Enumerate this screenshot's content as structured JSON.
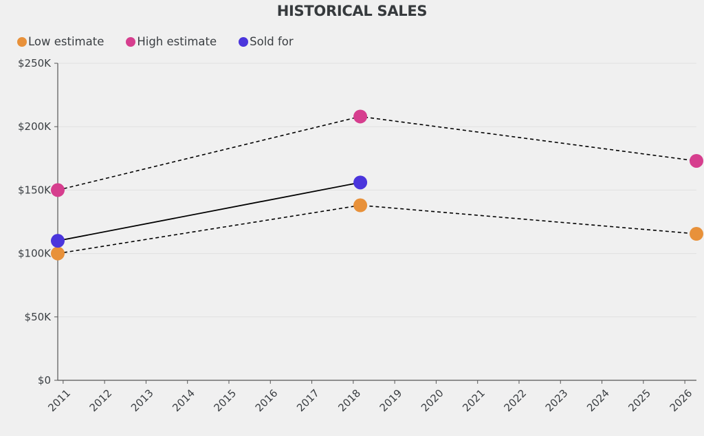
{
  "chart_data": {
    "type": "line",
    "title": "HISTORICAL SALES",
    "xlabel": "",
    "ylabel": "",
    "x_ticks": [
      "2011",
      "2012",
      "2013",
      "2014",
      "2015",
      "2016",
      "2017",
      "2018",
      "2019",
      "2020",
      "2021",
      "2022",
      "2023",
      "2024",
      "2025",
      "2026"
    ],
    "xlim": [
      2010.87,
      2026.28
    ],
    "y_ticks": [
      "$0",
      "$50K",
      "$100K",
      "$150K",
      "$200K",
      "$250K"
    ],
    "y_tick_values": [
      0,
      50000,
      100000,
      150000,
      200000,
      250000
    ],
    "ylim": [
      0,
      250000
    ],
    "grid": "horizontal",
    "legend_position": "top-left",
    "series": [
      {
        "name": "Low estimate",
        "color": "#e8913a",
        "line": "dashed",
        "x": [
          2010.87,
          2018.17,
          2026.28
        ],
        "values": [
          100000,
          138000,
          115500
        ]
      },
      {
        "name": "High estimate",
        "color": "#d63e8e",
        "line": "dashed",
        "x": [
          2010.87,
          2018.17,
          2026.28
        ],
        "values": [
          150000,
          208000,
          173000
        ]
      },
      {
        "name": "Sold for",
        "color": "#4a35dc",
        "line": "solid",
        "x": [
          2010.87,
          2018.17
        ],
        "values": [
          110000,
          156000
        ]
      }
    ]
  }
}
